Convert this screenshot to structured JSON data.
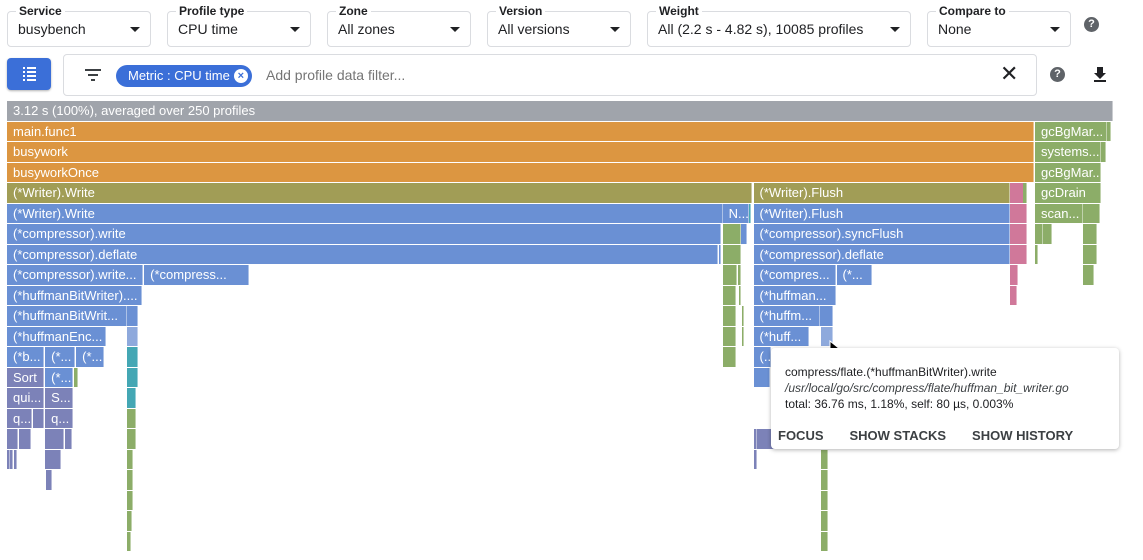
{
  "selectors": [
    {
      "label": "Service",
      "value": "busybench"
    },
    {
      "label": "Profile type",
      "value": "CPU time"
    },
    {
      "label": "Zone",
      "value": "All zones"
    },
    {
      "label": "Version",
      "value": "All versions"
    },
    {
      "label": "Weight",
      "value": "All (2.2 s - 4.82 s), 10085 profiles"
    },
    {
      "label": "Compare to",
      "value": "None"
    }
  ],
  "filter": {
    "chip": "Metric : CPU time",
    "placeholder": "Add profile data filter..."
  },
  "colors": {
    "gray": "#a0a4ab",
    "orange": "#dc9641",
    "green": "#8cad68",
    "olive": "#a19d56",
    "blue": "#6a90d4",
    "pink": "#d0789a",
    "purple": "#7c82b8",
    "teal": "#44a7b4",
    "lightblue": "#8ea9dc"
  },
  "flame_graph": {
    "unit": "percent of total",
    "frames": [
      [
        0,
        0,
        100,
        "3.12 s (100%), averaged over 250 profiles",
        "gray"
      ],
      [
        1,
        0,
        92.9,
        "main.func1",
        "orange"
      ],
      [
        1,
        92.95,
        6.5,
        "gcBgMar...",
        "green"
      ],
      [
        1,
        99.5,
        0.3,
        "",
        "green"
      ],
      [
        2,
        0,
        92.9,
        "busywork",
        "orange"
      ],
      [
        2,
        92.95,
        6.0,
        "systems...",
        "green"
      ],
      [
        2,
        98.9,
        0.45,
        "",
        "green"
      ],
      [
        3,
        0,
        92.9,
        "busyworkOnce",
        "orange"
      ],
      [
        3,
        92.95,
        6.0,
        "gcBgMar...",
        "green"
      ],
      [
        4,
        0,
        67.4,
        "(*Writer).Write",
        "olive"
      ],
      [
        4,
        67.5,
        23.2,
        "(*Writer).Flush",
        "olive"
      ],
      [
        4,
        90.7,
        1.5,
        "",
        "pink"
      ],
      [
        4,
        91.9,
        0.3,
        "",
        "green"
      ],
      [
        4,
        92.95,
        6.0,
        "gcDrain",
        "green"
      ],
      [
        5,
        0,
        64.7,
        "(*Writer).Write",
        "blue"
      ],
      [
        5,
        64.7,
        2.35,
        "N...",
        "blue"
      ],
      [
        5,
        67.05,
        0.2,
        "",
        "teal"
      ],
      [
        5,
        67.5,
        23.2,
        "(*Writer).Flush",
        "blue"
      ],
      [
        5,
        90.7,
        1.5,
        "",
        "pink"
      ],
      [
        5,
        92.95,
        4.3,
        "scan...",
        "green"
      ],
      [
        5,
        97.3,
        1.5,
        "",
        "green"
      ],
      [
        6,
        0,
        64.6,
        "(*compressor).write",
        "blue"
      ],
      [
        6,
        64.75,
        1.6,
        "",
        "green"
      ],
      [
        6,
        66.4,
        0.5,
        "",
        "blue"
      ],
      [
        6,
        67.5,
        23.2,
        "(*compressor).syncFlush",
        "blue"
      ],
      [
        6,
        90.7,
        1.5,
        "",
        "pink"
      ],
      [
        6,
        92.95,
        0.7,
        "",
        "green"
      ],
      [
        6,
        93.7,
        0.8,
        "",
        "green"
      ],
      [
        6,
        97.3,
        1.25,
        "",
        "green"
      ],
      [
        7,
        0,
        64.3,
        "(*compressor).deflate",
        "blue"
      ],
      [
        7,
        64.4,
        0.1,
        "",
        "blue"
      ],
      [
        7,
        64.75,
        1.6,
        "",
        "green"
      ],
      [
        7,
        67.5,
        23.2,
        "(*compressor).deflate",
        "blue"
      ],
      [
        7,
        90.7,
        1.5,
        "",
        "pink"
      ],
      [
        7,
        92.95,
        0.27,
        "",
        "green"
      ],
      [
        7,
        97.3,
        1.25,
        "",
        "green"
      ],
      [
        8,
        0,
        12.3,
        "(*compressor).write...",
        "blue"
      ],
      [
        8,
        12.4,
        8.0,
        "(*compress...",
        "blue"
      ],
      [
        8,
        20.35,
        1.5,
        "",
        "blue"
      ],
      [
        8,
        64.75,
        1.25,
        "",
        "green"
      ],
      [
        8,
        66.1,
        0.27,
        "",
        "green"
      ],
      [
        8,
        67.5,
        7.5,
        "(*compres...",
        "blue"
      ],
      [
        8,
        75.0,
        3.25,
        "(*...",
        "blue"
      ],
      [
        8,
        90.7,
        0.7,
        "",
        "pink"
      ],
      [
        8,
        97.3,
        1.0,
        "",
        "green"
      ],
      [
        9,
        0,
        12.2,
        "(*huffmanBitWriter)....",
        "blue"
      ],
      [
        9,
        64.75,
        1.2,
        "",
        "green"
      ],
      [
        9,
        66.2,
        0.2,
        "",
        "green"
      ],
      [
        9,
        67.5,
        7.5,
        "(*huffman...",
        "blue"
      ],
      [
        9,
        90.7,
        0.6,
        "",
        "pink"
      ],
      [
        10,
        0,
        10.85,
        "(*huffmanBitWrit...",
        "blue"
      ],
      [
        10,
        10.85,
        1.0,
        "",
        "blue"
      ],
      [
        10,
        64.75,
        1.2,
        "",
        "green"
      ],
      [
        10,
        66.45,
        0.2,
        "",
        "green"
      ],
      [
        10,
        67.5,
        6.05,
        "(*huffm...",
        "blue"
      ],
      [
        10,
        73.55,
        1.15,
        "",
        "blue"
      ],
      [
        11,
        0,
        8.95,
        "(*huffmanEnc...",
        "blue"
      ],
      [
        11,
        10.85,
        1.0,
        "",
        "lightblue"
      ],
      [
        11,
        64.75,
        1.2,
        "",
        "green"
      ],
      [
        11,
        66.45,
        0.2,
        "",
        "green"
      ],
      [
        11,
        67.5,
        5.0,
        "(*huff...",
        "blue"
      ],
      [
        11,
        73.6,
        1.1,
        "",
        "lightblue"
      ],
      [
        12,
        0,
        3.35,
        "(*b...",
        "blue"
      ],
      [
        12,
        3.45,
        2.7,
        "(*...",
        "blue"
      ],
      [
        12,
        6.25,
        2.5,
        "(*...",
        "blue"
      ],
      [
        12,
        10.85,
        1.0,
        "",
        "teal"
      ],
      [
        12,
        64.75,
        1.2,
        "",
        "green"
      ],
      [
        12,
        67.5,
        1.55,
        "(...",
        "blue"
      ],
      [
        13,
        0,
        3.35,
        "Sort",
        "purple"
      ],
      [
        13,
        3.45,
        2.5,
        "(*...",
        "blue"
      ],
      [
        13,
        6.05,
        0.35,
        "",
        "green"
      ],
      [
        13,
        10.85,
        1.0,
        "",
        "teal"
      ],
      [
        13,
        67.5,
        1.5,
        "",
        "blue"
      ],
      [
        14,
        0,
        3.35,
        "qui...",
        "purple"
      ],
      [
        14,
        3.45,
        2.5,
        "S...",
        "purple"
      ],
      [
        14,
        10.85,
        0.8,
        "",
        "teal"
      ],
      [
        15,
        0,
        2.25,
        "q...",
        "purple"
      ],
      [
        15,
        2.35,
        1.0,
        "",
        "purple"
      ],
      [
        15,
        3.45,
        2.5,
        "q...",
        "purple"
      ],
      [
        15,
        10.85,
        0.8,
        "",
        "green"
      ],
      [
        16,
        0,
        1.0,
        "",
        "purple"
      ],
      [
        16,
        1.1,
        1.1,
        "",
        "purple"
      ],
      [
        16,
        3.45,
        1.7,
        "",
        "purple"
      ],
      [
        16,
        5.2,
        0.65,
        "",
        "purple"
      ],
      [
        16,
        10.85,
        0.8,
        "",
        "green"
      ],
      [
        16,
        67.5,
        0.35,
        "",
        "purple"
      ],
      [
        16,
        67.85,
        1.7,
        "",
        "purple"
      ],
      [
        16,
        73.6,
        0.6,
        "",
        "green"
      ],
      [
        17,
        0,
        0.27,
        "",
        "purple"
      ],
      [
        17,
        0.3,
        0.27,
        "",
        "purple"
      ],
      [
        17,
        0.6,
        0.3,
        "",
        "purple"
      ],
      [
        17,
        3.45,
        1.45,
        "",
        "purple"
      ],
      [
        17,
        10.85,
        0.55,
        "",
        "green"
      ],
      [
        17,
        67.5,
        0.35,
        "",
        "purple"
      ],
      [
        17,
        73.6,
        0.6,
        "",
        "green"
      ],
      [
        18,
        3.5,
        0.55,
        "",
        "purple"
      ],
      [
        18,
        10.85,
        0.55,
        "",
        "green"
      ],
      [
        18,
        73.6,
        0.6,
        "",
        "green"
      ],
      [
        19,
        10.85,
        0.55,
        "",
        "green"
      ],
      [
        19,
        73.6,
        0.6,
        "",
        "green"
      ],
      [
        20,
        10.85,
        0.45,
        "",
        "green"
      ],
      [
        20,
        73.6,
        0.6,
        "",
        "green"
      ],
      [
        21,
        10.85,
        0.35,
        "",
        "green"
      ],
      [
        21,
        73.6,
        0.6,
        "",
        "green"
      ]
    ]
  },
  "tooltip": {
    "function": "compress/flate.(*huffmanBitWriter).write",
    "file": "/usr/local/go/src/compress/flate/huffman_bit_writer.go",
    "stats": "total: 36.76 ms, 1.18%, self: 80 µs, 0.003%",
    "focus": "FOCUS",
    "show_stacks": "SHOW STACKS",
    "show_history": "SHOW HISTORY"
  }
}
